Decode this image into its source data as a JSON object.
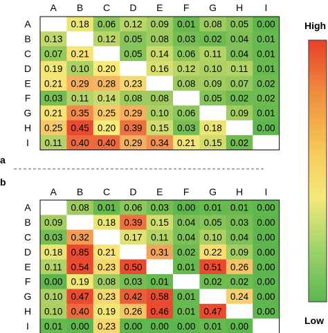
{
  "chart_data": [
    {
      "type": "heatmap",
      "panel_label": "a",
      "rows": [
        "A",
        "B",
        "C",
        "D",
        "E",
        "F",
        "G",
        "H",
        "I"
      ],
      "columns": [
        "A",
        "B",
        "C",
        "D",
        "E",
        "F",
        "G",
        "H",
        "I"
      ],
      "values": [
        [
          null,
          0.18,
          0.06,
          0.12,
          0.09,
          0.01,
          0.08,
          0.05,
          0.0
        ],
        [
          0.13,
          null,
          0.12,
          0.05,
          0.08,
          0.03,
          0.02,
          0.04,
          0.01
        ],
        [
          0.07,
          0.21,
          null,
          0.05,
          0.14,
          0.06,
          0.11,
          0.04,
          0.01
        ],
        [
          0.19,
          0.1,
          0.2,
          null,
          0.16,
          0.12,
          0.1,
          0.11,
          0.01
        ],
        [
          0.21,
          0.29,
          0.28,
          0.23,
          null,
          0.08,
          0.09,
          0.07,
          0.02
        ],
        [
          0.03,
          0.11,
          0.14,
          0.08,
          0.08,
          null,
          0.05,
          0.02,
          0.02
        ],
        [
          0.21,
          0.35,
          0.25,
          0.29,
          0.1,
          0.06,
          null,
          0.09,
          0.01
        ],
        [
          0.25,
          0.45,
          0.2,
          0.39,
          0.15,
          0.03,
          0.18,
          null,
          0.0
        ],
        [
          0.11,
          0.4,
          0.4,
          0.29,
          0.34,
          0.21,
          0.15,
          0.02,
          null
        ]
      ]
    },
    {
      "type": "heatmap",
      "panel_label": "b",
      "rows": [
        "A",
        "B",
        "C",
        "D",
        "E",
        "F",
        "G",
        "H",
        "I"
      ],
      "columns": [
        "A",
        "B",
        "C",
        "D",
        "E",
        "F",
        "G",
        "H",
        "I"
      ],
      "values": [
        [
          null,
          0.08,
          0.01,
          0.06,
          0.03,
          0.0,
          0.01,
          0.01,
          0.0
        ],
        [
          0.09,
          null,
          0.18,
          0.39,
          0.15,
          0.04,
          0.05,
          0.03,
          0.0
        ],
        [
          0.03,
          0.32,
          null,
          0.17,
          0.11,
          0.04,
          0.1,
          0.04,
          0.0
        ],
        [
          0.18,
          0.85,
          0.21,
          null,
          0.31,
          0.02,
          0.22,
          0.09,
          0.0
        ],
        [
          0.11,
          0.54,
          0.23,
          0.5,
          null,
          0.01,
          0.51,
          0.26,
          0.0
        ],
        [
          0.0,
          0.19,
          0.08,
          0.03,
          0.01,
          null,
          0.02,
          0.02,
          0.0
        ],
        [
          0.1,
          0.47,
          0.23,
          0.42,
          0.58,
          0.01,
          null,
          0.24,
          0.0
        ],
        [
          0.1,
          0.4,
          0.19,
          0.26,
          0.46,
          0.01,
          0.47,
          null,
          0.0
        ],
        [
          0.01,
          0.0,
          0.23,
          0.0,
          0.0,
          0.0,
          0.01,
          0.0,
          null
        ]
      ]
    }
  ],
  "legend": {
    "high_label": "High",
    "low_label": "Low",
    "colors": [
      "#e8402a",
      "#f08c3c",
      "#f6c453",
      "#f5e979",
      "#9fd36b",
      "#5ab84f"
    ]
  },
  "cell_colors": {
    "low": "#5fb64e",
    "mid": "#f9ea79",
    "high": "#ea4a2f",
    "mid_point": 0.2,
    "high_point": 0.45,
    "empty": "#ffffff"
  }
}
